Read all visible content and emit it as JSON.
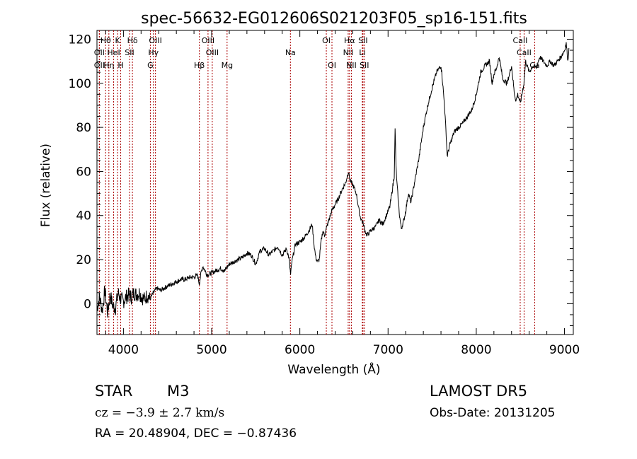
{
  "chart_data": {
    "type": "line",
    "title": "spec-56632-EG012606S021203F05_sp16-151.fits",
    "xlabel": "Wavelength (Å)",
    "ylabel": "Flux (relative)",
    "xlim": [
      3700,
      9100
    ],
    "ylim": [
      -14,
      124
    ],
    "xticks": [
      4000,
      5000,
      6000,
      7000,
      8000,
      9000
    ],
    "yticks": [
      0,
      20,
      40,
      60,
      80,
      100,
      120
    ],
    "grid": false,
    "line_color": "#000000",
    "marker_color": "#aa0000",
    "spectral_lines": [
      {
        "label": "Hθ",
        "wavelength": 3798,
        "row": 0
      },
      {
        "label": "K",
        "wavelength": 3934,
        "row": 0
      },
      {
        "label": "Hδ",
        "wavelength": 4102,
        "row": 0
      },
      {
        "label": "OIII",
        "wavelength": 4363,
        "row": 0
      },
      {
        "label": "OIII",
        "wavelength": 4959,
        "row": 0
      },
      {
        "label": "OI",
        "wavelength": 6300,
        "row": 0
      },
      {
        "label": "Hα",
        "wavelength": 6563,
        "row": 0
      },
      {
        "label": "SII",
        "wavelength": 6716,
        "row": 0
      },
      {
        "label": "CaII",
        "wavelength": 8498,
        "row": 0
      },
      {
        "label": "OII",
        "wavelength": 3727,
        "row": 1
      },
      {
        "label": "HeI",
        "wavelength": 3889,
        "row": 1
      },
      {
        "label": "SII",
        "wavelength": 4069,
        "row": 1
      },
      {
        "label": "Hγ",
        "wavelength": 4340,
        "row": 1
      },
      {
        "label": "OIII",
        "wavelength": 5007,
        "row": 1
      },
      {
        "label": "Na",
        "wavelength": 5893,
        "row": 1
      },
      {
        "label": "NII",
        "wavelength": 6548,
        "row": 1
      },
      {
        "label": "Li",
        "wavelength": 6708,
        "row": 1
      },
      {
        "label": "CaII",
        "wavelength": 8542,
        "row": 1
      },
      {
        "label": "OII",
        "wavelength": 3727,
        "row": 2
      },
      {
        "label": "Hη",
        "wavelength": 3835,
        "row": 2
      },
      {
        "label": "H",
        "wavelength": 3969,
        "row": 2
      },
      {
        "label": "G",
        "wavelength": 4305,
        "row": 2
      },
      {
        "label": "Hβ",
        "wavelength": 4861,
        "row": 2
      },
      {
        "label": "Mg",
        "wavelength": 5175,
        "row": 2
      },
      {
        "label": "OI",
        "wavelength": 6364,
        "row": 2
      },
      {
        "label": "NII",
        "wavelength": 6584,
        "row": 2
      },
      {
        "label": "SII",
        "wavelength": 6731,
        "row": 2
      },
      {
        "label": "Ca",
        "wavelength": 8662,
        "row": 2
      }
    ],
    "series": [
      {
        "x": [
          3700,
          3730,
          3760,
          3790,
          3820,
          3850,
          3880,
          3910,
          3940,
          3970,
          4000,
          4030,
          4060,
          4090,
          4120,
          4150,
          4180,
          4210,
          4240,
          4270,
          4300,
          4340,
          4380,
          4420,
          4460,
          4500,
          4550,
          4600,
          4650,
          4700,
          4750,
          4800,
          4840,
          4860,
          4880,
          4900,
          4950,
          5000,
          5050,
          5100,
          5150,
          5200,
          5250,
          5300,
          5350,
          5400,
          5450,
          5500,
          5550,
          5600,
          5650,
          5700,
          5750,
          5800,
          5850,
          5880,
          5895,
          5910,
          5950,
          6000,
          6050,
          6100,
          6140,
          6160,
          6180,
          6200,
          6220,
          6240,
          6260,
          6280,
          6300,
          6330,
          6360,
          6400,
          6440,
          6480,
          6520,
          6550,
          6565,
          6580,
          6600,
          6620,
          6640,
          6660,
          6680,
          6700,
          6720,
          6740,
          6760,
          6780,
          6800,
          6830,
          6860,
          6900,
          6940,
          6980,
          7020,
          7050,
          7070,
          7080,
          7090,
          7100,
          7110,
          7130,
          7150,
          7180,
          7200,
          7230,
          7260,
          7300,
          7350,
          7400,
          7450,
          7500,
          7550,
          7600,
          7620,
          7640,
          7660,
          7670,
          7700,
          7750,
          7800,
          7850,
          7900,
          7950,
          8000,
          8050,
          8100,
          8150,
          8180,
          8200,
          8230,
          8260,
          8300,
          8350,
          8400,
          8430,
          8450,
          8470,
          8500,
          8540,
          8560,
          8600,
          8640,
          8680,
          8720,
          8760,
          8800,
          8840,
          8880,
          8920,
          8960,
          9000,
          9020,
          9040,
          9050
        ],
        "y": [
          -2,
          3,
          -3,
          6,
          -4,
          4,
          -1,
          -2,
          5,
          2,
          1,
          3,
          4,
          3,
          5,
          4,
          5,
          3,
          2,
          4,
          2,
          5,
          7,
          6,
          7,
          8,
          9,
          10,
          11,
          11,
          12,
          12,
          13,
          9,
          14,
          17,
          13,
          14,
          15,
          16,
          15,
          18,
          19,
          20,
          21,
          23,
          22,
          18,
          24,
          25,
          22,
          24,
          26,
          22,
          25,
          20,
          13,
          19,
          27,
          28,
          30,
          33,
          36,
          27,
          21,
          19,
          20,
          28,
          33,
          31,
          34,
          38,
          42,
          45,
          48,
          52,
          55,
          60,
          57,
          55,
          54,
          52,
          50,
          45,
          40,
          38,
          36,
          33,
          31,
          32,
          33,
          34,
          35,
          38,
          36,
          40,
          44,
          52,
          58,
          79,
          62,
          55,
          50,
          40,
          34,
          38,
          42,
          50,
          46,
          55,
          66,
          80,
          90,
          98,
          105,
          108,
          100,
          90,
          76,
          67,
          72,
          78,
          80,
          82,
          85,
          88,
          95,
          105,
          108,
          110,
          100,
          104,
          107,
          112,
          102,
          100,
          108,
          96,
          92,
          95,
          91,
          100,
          110,
          105,
          108,
          107,
          112,
          110,
          108,
          110,
          108,
          110,
          112,
          115,
          118,
          110,
          116
        ]
      }
    ]
  },
  "footer": {
    "object_type": "STAR",
    "subclass": "M3",
    "redshift": "cz = −3.9 ± 2.7 km/s",
    "coords": "RA =  20.48904, DEC =  −0.87436",
    "survey": "LAMOST DR5",
    "obs_date": "Obs-Date: 20131205"
  }
}
